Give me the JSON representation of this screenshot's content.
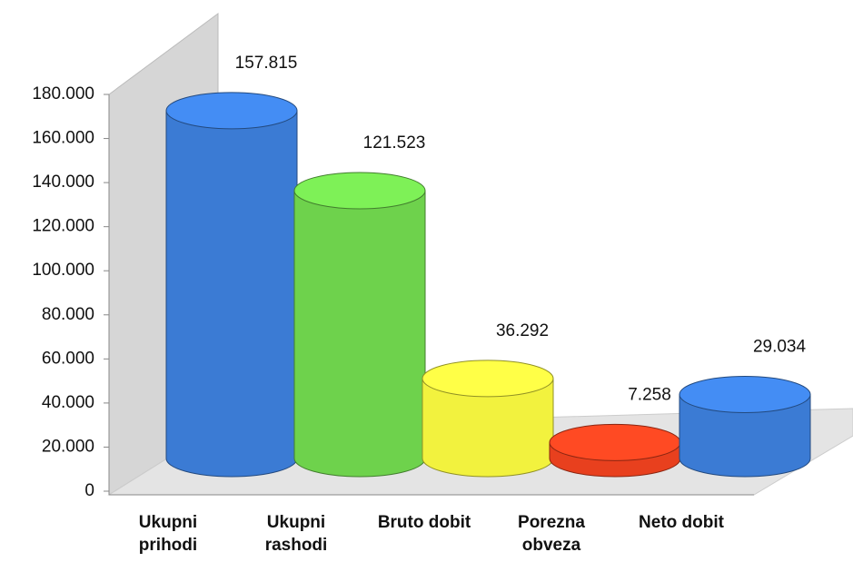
{
  "chart_data": {
    "type": "cylinder",
    "categories": [
      "Ukupni prihodi",
      "Ukupni rashodi",
      "Bruto dobit",
      "Porezna obveza",
      "Neto dobit"
    ],
    "values": [
      157815,
      121523,
      36292,
      7258,
      29034
    ],
    "value_labels": [
      "157.815",
      "121.523",
      "36.292",
      "7.258",
      "29.034"
    ],
    "colors": [
      "#3b7bd4",
      "#6ed24c",
      "#f2f23e",
      "#e8401e",
      "#3b7bd4"
    ],
    "ylim": [
      0,
      180000
    ],
    "yticks": [
      0,
      {
        "value": 20000,
        "label": "20.000"
      },
      {
        "value": 40000,
        "label": "40.000"
      },
      {
        "value": 60000,
        "label": "60.000"
      },
      {
        "value": 80000,
        "label": "80.000"
      },
      {
        "value": 100000,
        "label": "100.000"
      },
      {
        "value": 120000,
        "label": "120.000"
      },
      {
        "value": 140000,
        "label": "140.000"
      },
      {
        "value": 160000,
        "label": "160.000"
      },
      {
        "value": 180000,
        "label": "180.000"
      }
    ]
  }
}
